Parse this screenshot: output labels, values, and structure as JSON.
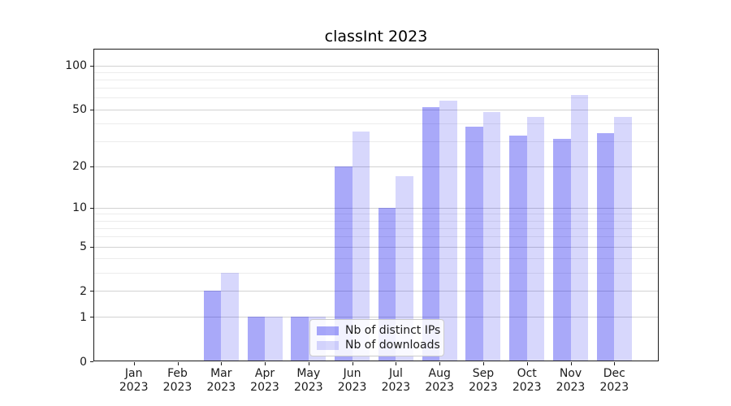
{
  "chart_data": {
    "type": "bar",
    "title": "classInt 2023",
    "categories": [
      "Jan",
      "Feb",
      "Mar",
      "Apr",
      "May",
      "Jun",
      "Jul",
      "Aug",
      "Sep",
      "Oct",
      "Nov",
      "Dec"
    ],
    "year_label": "2023",
    "series": [
      {
        "name": "Nb of distinct IPs",
        "color": "#0808ed59",
        "values": [
          0,
          0,
          2,
          1,
          1,
          20,
          10,
          52,
          38,
          33,
          31,
          34
        ]
      },
      {
        "name": "Nb of downloads",
        "color": "#0808ed29",
        "values": [
          0,
          0,
          3,
          1,
          1,
          35,
          17,
          57,
          48,
          44,
          63,
          44
        ]
      }
    ],
    "y_scale": "log10(v+1)",
    "y_ticks": [
      0,
      1,
      2,
      5,
      10,
      20,
      50,
      100
    ],
    "y_minor_ticks": [
      3,
      4,
      6,
      7,
      8,
      9,
      30,
      40,
      60,
      70,
      80,
      90
    ],
    "ylim": [
      0,
      130
    ],
    "xlabel": "",
    "ylabel": "",
    "grid": "both-horizontal",
    "legend_position": "lower center"
  },
  "colors": {
    "bar_distinct_ips_on_white": "#aaaaf9",
    "bar_downloads_on_white": "#d8d8fc",
    "grid_major": "#d2d2d2",
    "grid_minor": "#ececec",
    "spine": "#1b1b1b"
  }
}
